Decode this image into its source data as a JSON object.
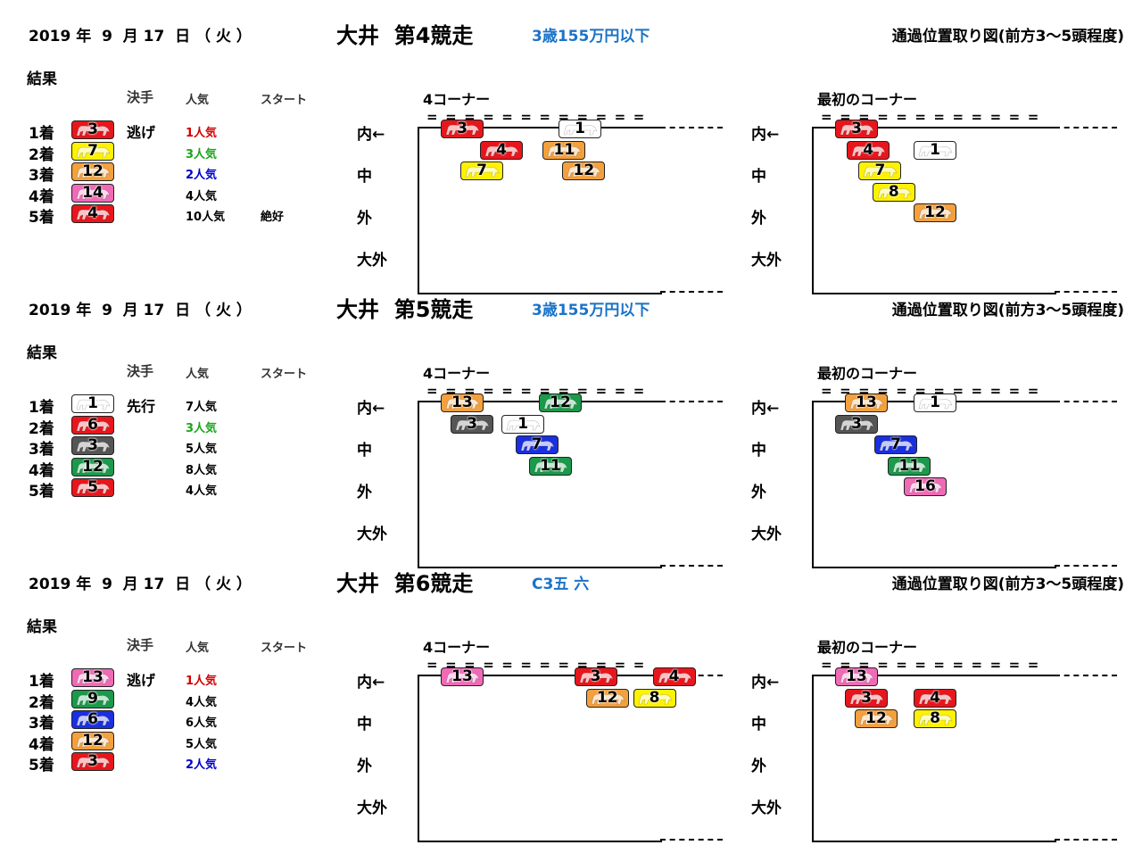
{
  "races": [
    {
      "date": "2019 年  9  月 17  日 （ 火 ）",
      "title": "大井  第4競走",
      "class": "3歳155万円以下",
      "chart_title": "通過位置取り図(前方3～5頭程度)",
      "result_label": "結果",
      "col_kimete": "決手",
      "col_ninki": "人気",
      "col_start": "スタート",
      "results": [
        {
          "rank": "1着",
          "num": "3",
          "color": "#e8161c",
          "kimete": "逃げ",
          "ninki": "1人気",
          "ninki_color": "#d40000",
          "start": ""
        },
        {
          "rank": "2着",
          "num": "7",
          "color": "#fff200",
          "kimete": "",
          "ninki": "3人気",
          "ninki_color": "#1aa51a",
          "start": ""
        },
        {
          "rank": "3着",
          "num": "12",
          "color": "#f4a03c",
          "kimete": "",
          "ninki": "2人気",
          "ninki_color": "#0000cc",
          "start": ""
        },
        {
          "rank": "4着",
          "num": "14",
          "color": "#f06ab6",
          "kimete": "",
          "ninki": "4人気",
          "ninki_color": "#000000",
          "start": ""
        },
        {
          "rank": "5着",
          "num": "4",
          "color": "#e8161c",
          "kimete": "",
          "ninki": "10人気",
          "ninki_color": "#000000",
          "start": "絶好"
        }
      ],
      "panel4_label": "4コーナー",
      "panel1_label": "最初のコーナー",
      "eq": "============",
      "lanes": [
        "内←",
        "中",
        "外",
        "大外"
      ],
      "corner4": [
        {
          "num": "3",
          "color": "#e8161c",
          "col": 0,
          "row": 0
        },
        {
          "num": "4",
          "color": "#e8161c",
          "col": 1,
          "row": 1
        },
        {
          "num": "7",
          "color": "#fff200",
          "col": 0.5,
          "row": 2
        },
        {
          "num": "1",
          "color": "#ffffff",
          "col": 3,
          "row": 0
        },
        {
          "num": "11",
          "color": "#f4a03c",
          "col": 2.6,
          "row": 1
        },
        {
          "num": "12",
          "color": "#f4a03c",
          "col": 3.1,
          "row": 2
        }
      ],
      "corner1": [
        {
          "num": "3",
          "color": "#e8161c",
          "col": 0,
          "row": 0
        },
        {
          "num": "4",
          "color": "#e8161c",
          "col": 0.3,
          "row": 1
        },
        {
          "num": "1",
          "color": "#ffffff",
          "col": 2,
          "row": 1
        },
        {
          "num": "7",
          "color": "#fff200",
          "col": 0.6,
          "row": 2
        },
        {
          "num": "8",
          "color": "#fff200",
          "col": 0.95,
          "row": 3
        },
        {
          "num": "12",
          "color": "#f4a03c",
          "col": 2,
          "row": 4
        }
      ]
    },
    {
      "date": "2019 年  9  月 17  日 （ 火 ）",
      "title": "大井  第5競走",
      "class": "3歳155万円以下",
      "chart_title": "通過位置取り図(前方3～5頭程度)",
      "result_label": "結果",
      "col_kimete": "決手",
      "col_ninki": "人気",
      "col_start": "スタート",
      "results": [
        {
          "rank": "1着",
          "num": "1",
          "color": "#ffffff",
          "kimete": "先行",
          "ninki": "7人気",
          "ninki_color": "#000000",
          "start": ""
        },
        {
          "rank": "2着",
          "num": "6",
          "color": "#e8161c",
          "kimete": "",
          "ninki": "3人気",
          "ninki_color": "#1aa51a",
          "start": ""
        },
        {
          "rank": "3着",
          "num": "3",
          "color": "#555555",
          "kimete": "",
          "ninki": "5人気",
          "ninki_color": "#000000",
          "start": ""
        },
        {
          "rank": "4着",
          "num": "12",
          "color": "#1a9a4a",
          "kimete": "",
          "ninki": "8人気",
          "ninki_color": "#000000",
          "start": ""
        },
        {
          "rank": "5着",
          "num": "5",
          "color": "#e8161c",
          "kimete": "",
          "ninki": "4人気",
          "ninki_color": "#000000",
          "start": ""
        }
      ],
      "panel4_label": "4コーナー",
      "panel1_label": "最初のコーナー",
      "eq": "============",
      "lanes": [
        "内←",
        "中",
        "外",
        "大外"
      ],
      "corner4": [
        {
          "num": "13",
          "color": "#f4a03c",
          "col": 0,
          "row": 0
        },
        {
          "num": "3",
          "color": "#555555",
          "col": 0.25,
          "row": 1
        },
        {
          "num": "12",
          "color": "#1a9a4a",
          "col": 2.5,
          "row": 0
        },
        {
          "num": "1",
          "color": "#ffffff",
          "col": 1.55,
          "row": 1
        },
        {
          "num": "7",
          "color": "#1a2fe0",
          "col": 1.9,
          "row": 2
        },
        {
          "num": "11",
          "color": "#1a9a4a",
          "col": 2.25,
          "row": 3
        }
      ],
      "corner1": [
        {
          "num": "13",
          "color": "#f4a03c",
          "col": 0.25,
          "row": 0
        },
        {
          "num": "1",
          "color": "#ffffff",
          "col": 2,
          "row": 0
        },
        {
          "num": "3",
          "color": "#555555",
          "col": 0,
          "row": 1
        },
        {
          "num": "7",
          "color": "#1a2fe0",
          "col": 1,
          "row": 2
        },
        {
          "num": "11",
          "color": "#1a9a4a",
          "col": 1.35,
          "row": 3
        },
        {
          "num": "16",
          "color": "#f06ab6",
          "col": 1.75,
          "row": 4
        }
      ]
    },
    {
      "date": "2019 年  9  月 17  日 （ 火 ）",
      "title": "大井  第6競走",
      "class": "C3五 六",
      "chart_title": "通過位置取り図(前方3～5頭程度)",
      "result_label": "結果",
      "col_kimete": "決手",
      "col_ninki": "人気",
      "col_start": "スタート",
      "results": [
        {
          "rank": "1着",
          "num": "13",
          "color": "#f06ab6",
          "kimete": "逃げ",
          "ninki": "1人気",
          "ninki_color": "#d40000",
          "start": ""
        },
        {
          "rank": "2着",
          "num": "9",
          "color": "#1a9a4a",
          "kimete": "",
          "ninki": "4人気",
          "ninki_color": "#000000",
          "start": ""
        },
        {
          "rank": "3着",
          "num": "6",
          "color": "#1a2fe0",
          "kimete": "",
          "ninki": "6人気",
          "ninki_color": "#000000",
          "start": ""
        },
        {
          "rank": "4着",
          "num": "12",
          "color": "#f4a03c",
          "kimete": "",
          "ninki": "5人気",
          "ninki_color": "#000000",
          "start": ""
        },
        {
          "rank": "5着",
          "num": "3",
          "color": "#e8161c",
          "kimete": "",
          "ninki": "2人気",
          "ninki_color": "#0000cc",
          "start": ""
        }
      ],
      "panel4_label": "4コーナー",
      "panel1_label": "最初のコーナー",
      "eq": "============",
      "lanes": [
        "内←",
        "中",
        "外",
        "大外"
      ],
      "corner4": [
        {
          "num": "13",
          "color": "#f06ab6",
          "col": 0,
          "row": 0
        },
        {
          "num": "3",
          "color": "#e8161c",
          "col": 3.4,
          "row": 0
        },
        {
          "num": "4",
          "color": "#e8161c",
          "col": 5.4,
          "row": 0
        },
        {
          "num": "12",
          "color": "#f4a03c",
          "col": 3.7,
          "row": 1
        },
        {
          "num": "8",
          "color": "#fff200",
          "col": 4.9,
          "row": 1
        }
      ],
      "corner1": [
        {
          "num": "13",
          "color": "#f06ab6",
          "col": 0,
          "row": 0
        },
        {
          "num": "3",
          "color": "#e8161c",
          "col": 0.25,
          "row": 1
        },
        {
          "num": "4",
          "color": "#e8161c",
          "col": 2,
          "row": 1
        },
        {
          "num": "12",
          "color": "#f4a03c",
          "col": 0.5,
          "row": 2
        },
        {
          "num": "8",
          "color": "#fff200",
          "col": 2,
          "row": 2
        }
      ]
    }
  ]
}
